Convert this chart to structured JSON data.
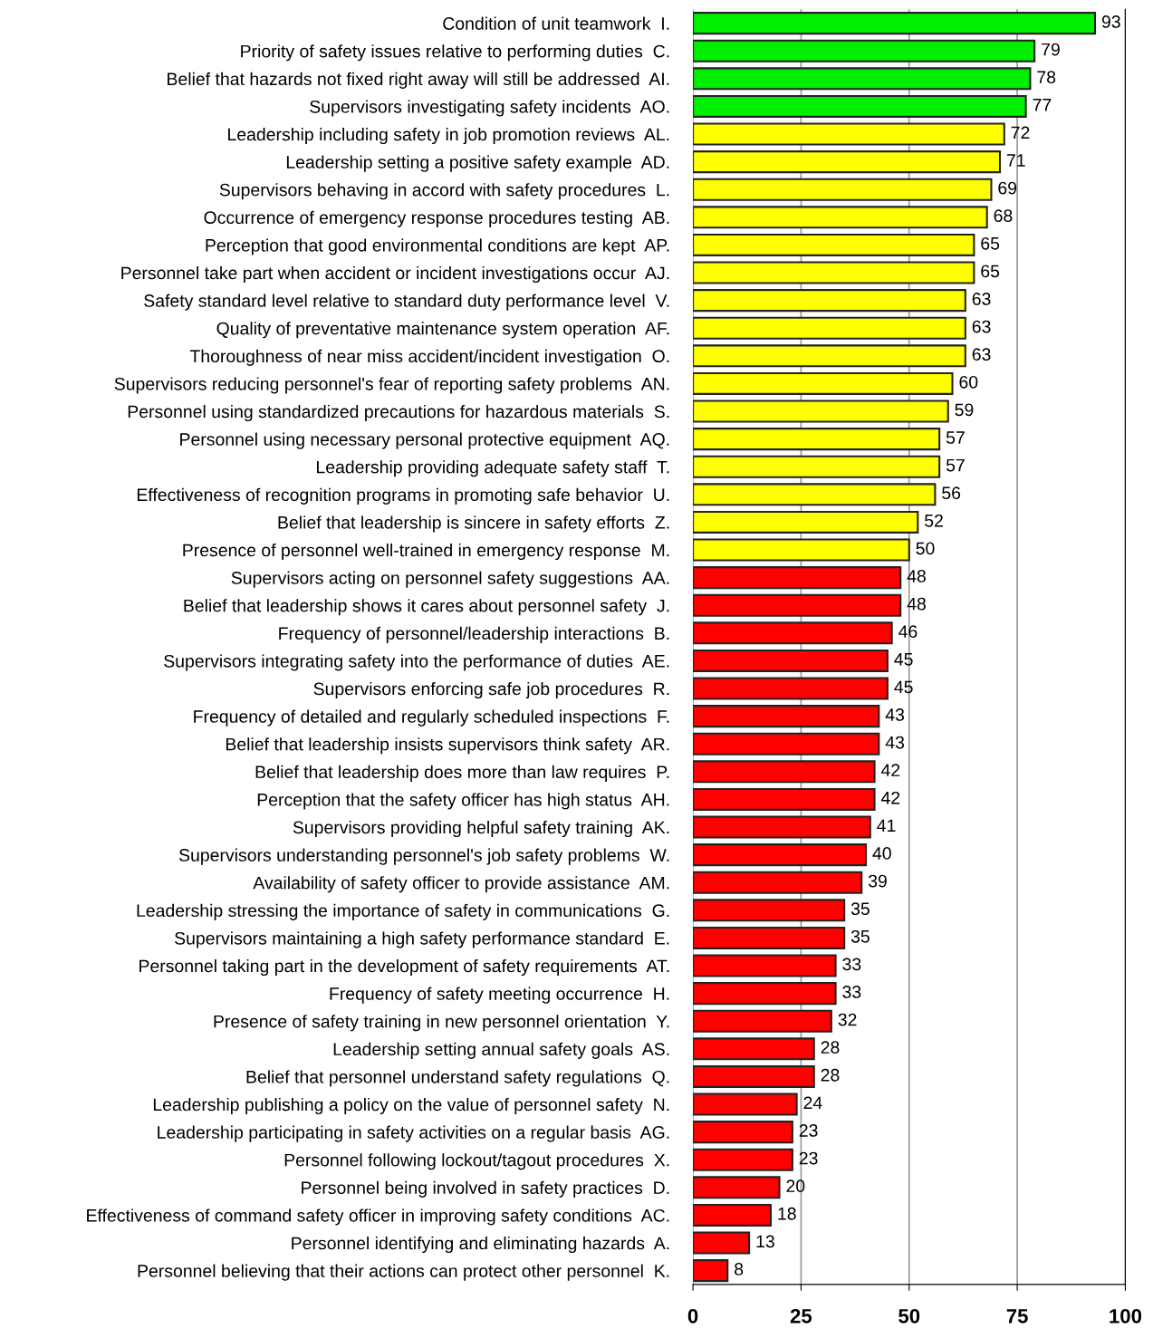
{
  "chart_data": {
    "type": "bar",
    "orientation": "horizontal",
    "data_labels": true,
    "grid": "x",
    "xlim": [
      0,
      100
    ],
    "xticks": [
      0,
      25,
      50,
      75,
      100
    ],
    "categories": [
      "Condition of unit teamwork  I.",
      "Priority of safety issues relative to performing duties  C.",
      "Belief that hazards not fixed right away will still be addressed  AI.",
      "Supervisors investigating safety incidents  AO.",
      "Leadership including safety in job promotion reviews  AL.",
      "Leadership setting a positive safety example  AD.",
      "Supervisors behaving in accord with safety procedures  L.",
      "Occurrence of emergency response procedures testing  AB.",
      "Perception that good environmental conditions are kept  AP.",
      "Personnel take part when accident or incident investigations occur  AJ.",
      "Safety standard level relative to standard duty performance level  V.",
      "Quality of preventative maintenance system operation  AF.",
      "Thoroughness of near miss accident/incident investigation  O.",
      "Supervisors reducing personnel's fear of reporting safety problems  AN.",
      "Personnel using standardized precautions for hazardous materials  S.",
      "Personnel using necessary personal protective equipment  AQ.",
      "Leadership providing adequate safety staff  T.",
      "Effectiveness of recognition programs in promoting safe behavior  U.",
      "Belief that leadership is sincere in safety efforts  Z.",
      "Presence of personnel well-trained in emergency response  M.",
      "Supervisors acting on personnel safety suggestions  AA.",
      "Belief that leadership shows it cares about personnel safety  J.",
      "Frequency of personnel/leadership interactions  B.",
      "Supervisors integrating safety into the performance of duties  AE.",
      "Supervisors enforcing safe job procedures  R.",
      "Frequency of detailed and regularly scheduled inspections  F.",
      "Belief that leadership insists supervisors think safety  AR.",
      "Belief that leadership does more than law requires  P.",
      "Perception that the safety officer has high status  AH.",
      "Supervisors providing helpful safety training  AK.",
      "Supervisors understanding personnel's job safety problems  W.",
      "Availability of safety officer to provide assistance  AM.",
      "Leadership stressing the importance of safety in communications  G.",
      "Supervisors maintaining a high safety performance standard  E.",
      "Personnel taking part in the development of safety requirements  AT.",
      "Frequency of safety meeting occurrence  H.",
      "Presence of safety training in new personnel orientation  Y.",
      "Leadership setting annual safety goals  AS.",
      "Belief that personnel understand safety regulations  Q.",
      "Leadership publishing a policy on the value of personnel safety  N.",
      "Leadership participating in safety activities on a regular basis  AG.",
      "Personnel following lockout/tagout procedures  X.",
      "Personnel being involved in safety practices  D.",
      "Effectiveness of command safety officer in improving safety conditions  AC.",
      "Personnel identifying and eliminating hazards  A.",
      "Personnel believing that their actions can protect other personnel  K."
    ],
    "values": [
      93,
      79,
      78,
      77,
      72,
      71,
      69,
      68,
      65,
      65,
      63,
      63,
      63,
      60,
      59,
      57,
      57,
      56,
      52,
      50,
      48,
      48,
      46,
      45,
      45,
      43,
      43,
      42,
      42,
      41,
      40,
      39,
      35,
      35,
      33,
      33,
      32,
      28,
      28,
      24,
      23,
      23,
      20,
      18,
      13,
      8
    ],
    "colors": [
      "#00ee00",
      "#00ee00",
      "#00ee00",
      "#00ee00",
      "#ffff00",
      "#ffff00",
      "#ffff00",
      "#ffff00",
      "#ffff00",
      "#ffff00",
      "#ffff00",
      "#ffff00",
      "#ffff00",
      "#ffff00",
      "#ffff00",
      "#ffff00",
      "#ffff00",
      "#ffff00",
      "#ffff00",
      "#ffff00",
      "#ff0000",
      "#ff0000",
      "#ff0000",
      "#ff0000",
      "#ff0000",
      "#ff0000",
      "#ff0000",
      "#ff0000",
      "#ff0000",
      "#ff0000",
      "#ff0000",
      "#ff0000",
      "#ff0000",
      "#ff0000",
      "#ff0000",
      "#ff0000",
      "#ff0000",
      "#ff0000",
      "#ff0000",
      "#ff0000",
      "#ff0000",
      "#ff0000",
      "#ff0000",
      "#ff0000",
      "#ff0000",
      "#ff0000"
    ]
  }
}
